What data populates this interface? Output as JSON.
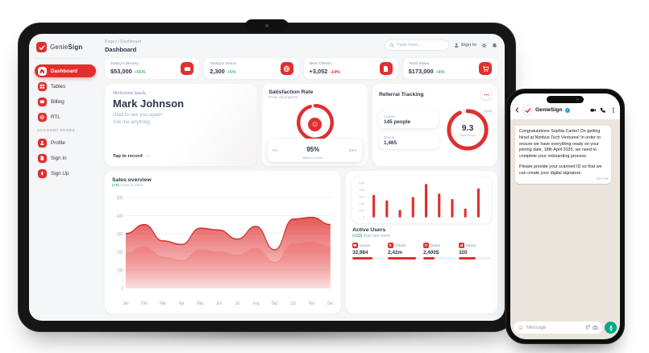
{
  "colors": {
    "accent": "#e02f2f",
    "positive": "#48bb78",
    "negative": "#e02f2f",
    "whatsapp_green": "#00a884",
    "verified_blue": "#1e9de6"
  },
  "sidebar": {
    "brand_prefix": "Genie",
    "brand_suffix": "Sign",
    "items": [
      {
        "label": "Dashboard"
      },
      {
        "label": "Tables"
      },
      {
        "label": "Billing"
      },
      {
        "label": "RTL"
      }
    ],
    "section_label": "ACCOUNT PAGES",
    "account_items": [
      {
        "label": "Profile"
      },
      {
        "label": "Sign In"
      },
      {
        "label": "Sign Up"
      }
    ]
  },
  "topbar": {
    "breadcrumb": "Pages / Dashboard",
    "title": "Dashboard",
    "search_placeholder": "Type here...",
    "sign_in": "Sign In"
  },
  "stats": [
    {
      "label": "Today's Money",
      "value": "$53,000",
      "delta": "+55%",
      "icon": "wallet-icon"
    },
    {
      "label": "Today's Users",
      "value": "2,300",
      "delta": "+5%",
      "icon": "globe-icon"
    },
    {
      "label": "New Clients",
      "value": "+3,052",
      "delta": "-14%",
      "icon": "document-icon"
    },
    {
      "label": "Total Sales",
      "value": "$173,000",
      "delta": "+8%",
      "icon": "cart-icon"
    }
  ],
  "welcome": {
    "greeting": "Welcome back,",
    "name": "Mark Johnson",
    "line1": "Glad to see you again!",
    "line2": "Ask me anything.",
    "cta": "Tap to record",
    "arrow": "→"
  },
  "satisfaction": {
    "title": "Satisfaction Rate",
    "subtitle": "From all projects",
    "percent": 95,
    "percent_label": "95%",
    "caption": "Based on likes",
    "min_label": "0%",
    "max_label": "100%"
  },
  "referral": {
    "title": "Referral Tracking",
    "invited_label": "Invited",
    "invited_value": "145 people",
    "bonus_label": "Bonus",
    "bonus_value": "1,465",
    "score": 9.3,
    "score_label": "9.3",
    "score_caption": "Total Score",
    "badge": "Safety"
  },
  "sales": {
    "title": "Sales overview",
    "subtitle_hl": "(+5)",
    "subtitle_rest": " more in 2021",
    "chart_data": {
      "type": "area",
      "x": [
        "Jan",
        "Feb",
        "Mar",
        "Apr",
        "May",
        "Jun",
        "Jul",
        "Aug",
        "Sep",
        "Oct",
        "Nov",
        "Dec"
      ],
      "series": [
        {
          "name": "Primary",
          "values": [
            300,
            350,
            260,
            240,
            330,
            320,
            270,
            340,
            210,
            380,
            390,
            350
          ]
        },
        {
          "name": "Secondary",
          "values": [
            190,
            230,
            170,
            150,
            210,
            200,
            180,
            220,
            140,
            250,
            260,
            230
          ]
        }
      ],
      "ylim": [
        0,
        500
      ],
      "yticks": [
        0,
        100,
        200,
        300,
        400,
        500
      ],
      "grid": true
    }
  },
  "active_users": {
    "title": "Active Users",
    "subtitle_hl": "(+23)",
    "subtitle_rest": " than last week",
    "stats": [
      {
        "label": "Users",
        "value": "32,984",
        "bar": 62
      },
      {
        "label": "Clicks",
        "value": "2,42m",
        "bar": 88
      },
      {
        "label": "Sales",
        "value": "2,400$",
        "bar": 34
      },
      {
        "label": "Items",
        "value": "320",
        "bar": 52
      }
    ],
    "chart_data": {
      "type": "bar",
      "values": [
        330,
        250,
        110,
        300,
        490,
        350,
        270,
        130,
        425
      ],
      "ylim": [
        0,
        500
      ],
      "yticks": [
        0,
        100,
        200,
        300,
        400,
        500
      ]
    }
  },
  "phone": {
    "contact_name": "GenieSign",
    "message_p1": "Congratulations Sophia Carter! On getting hired at Nimbus Tech Ventures! In order to ensure we have everything ready on your joining date, 18th April 2025, we need to complete your onboarding process.",
    "message_p2": "Please provide your scanned ID so that we can create your digital signature.",
    "time": "3:01 PM",
    "input_placeholder": "Message"
  }
}
